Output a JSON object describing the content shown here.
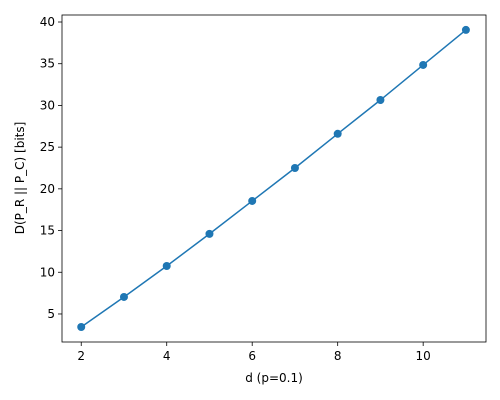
{
  "chart_data": {
    "type": "line",
    "x_label": "d (p=0.1)",
    "y_label": "D(P_R || P_C) [bits]",
    "x": [
      2,
      3,
      4,
      5,
      6,
      7,
      8,
      9,
      10,
      11
    ],
    "series": [
      {
        "color": "#1f77b4",
        "values": [
          3.44,
          7.04,
          10.75,
          14.6,
          18.55,
          22.5,
          26.6,
          30.65,
          34.85,
          39.05
        ]
      }
    ],
    "xlim": [
      1.55,
      11.47
    ],
    "ylim": [
      1.64,
      40.84
    ],
    "xticks": [
      2,
      4,
      6,
      8,
      10
    ],
    "yticks": [
      5,
      10,
      15,
      20,
      25,
      30,
      35,
      40
    ],
    "markers": true
  }
}
